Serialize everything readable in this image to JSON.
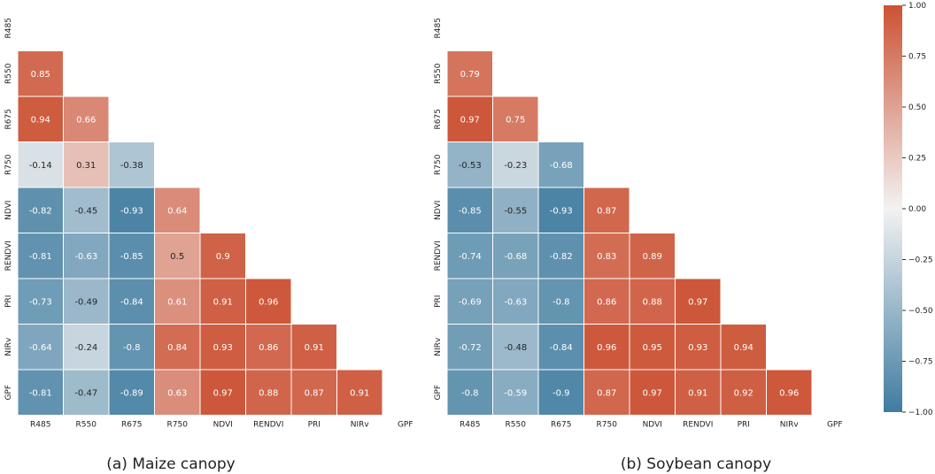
{
  "chart_data": [
    {
      "type": "heatmap",
      "caption": "(a) Maize canopy",
      "variables": [
        "R485",
        "R550",
        "R675",
        "R750",
        "NDVI",
        "RENDVI",
        "PRI",
        "NIRv",
        "GPF"
      ],
      "lower_triangle": [
        [],
        [
          0.85
        ],
        [
          0.94,
          0.66
        ],
        [
          -0.14,
          0.31,
          -0.38
        ],
        [
          -0.82,
          -0.45,
          -0.93,
          0.64
        ],
        [
          -0.81,
          -0.63,
          -0.85,
          0.5,
          0.9
        ],
        [
          -0.73,
          -0.49,
          -0.84,
          0.61,
          0.91,
          0.96
        ],
        [
          -0.64,
          -0.24,
          -0.8,
          0.84,
          0.93,
          0.86,
          0.91
        ],
        [
          -0.81,
          -0.47,
          -0.89,
          0.63,
          0.97,
          0.88,
          0.87,
          0.91
        ]
      ]
    },
    {
      "type": "heatmap",
      "caption": "(b) Soybean canopy",
      "variables": [
        "R485",
        "R550",
        "R675",
        "R750",
        "NDVI",
        "RENDVI",
        "PRI",
        "NIRv",
        "GPF"
      ],
      "lower_triangle": [
        [],
        [
          0.79
        ],
        [
          0.97,
          0.75
        ],
        [
          -0.53,
          -0.23,
          -0.68
        ],
        [
          -0.85,
          -0.55,
          -0.93,
          0.87
        ],
        [
          -0.74,
          -0.68,
          -0.82,
          0.83,
          0.89
        ],
        [
          -0.69,
          -0.63,
          -0.8,
          0.86,
          0.88,
          0.97
        ],
        [
          -0.72,
          -0.48,
          -0.84,
          0.96,
          0.95,
          0.93,
          0.94
        ],
        [
          -0.8,
          -0.59,
          -0.9,
          0.87,
          0.97,
          0.91,
          0.92,
          0.96
        ]
      ]
    }
  ],
  "colorbar": {
    "range": [
      -1.0,
      1.0
    ],
    "ticks": [
      "1.00",
      "0.75",
      "0.50",
      "0.25",
      "0.00",
      "-0.25",
      "-0.50",
      "-0.75",
      "-1.00"
    ],
    "low_color": "#3f7ca0",
    "mid_color": "#f2f2f2",
    "high_color": "#cc5234"
  }
}
